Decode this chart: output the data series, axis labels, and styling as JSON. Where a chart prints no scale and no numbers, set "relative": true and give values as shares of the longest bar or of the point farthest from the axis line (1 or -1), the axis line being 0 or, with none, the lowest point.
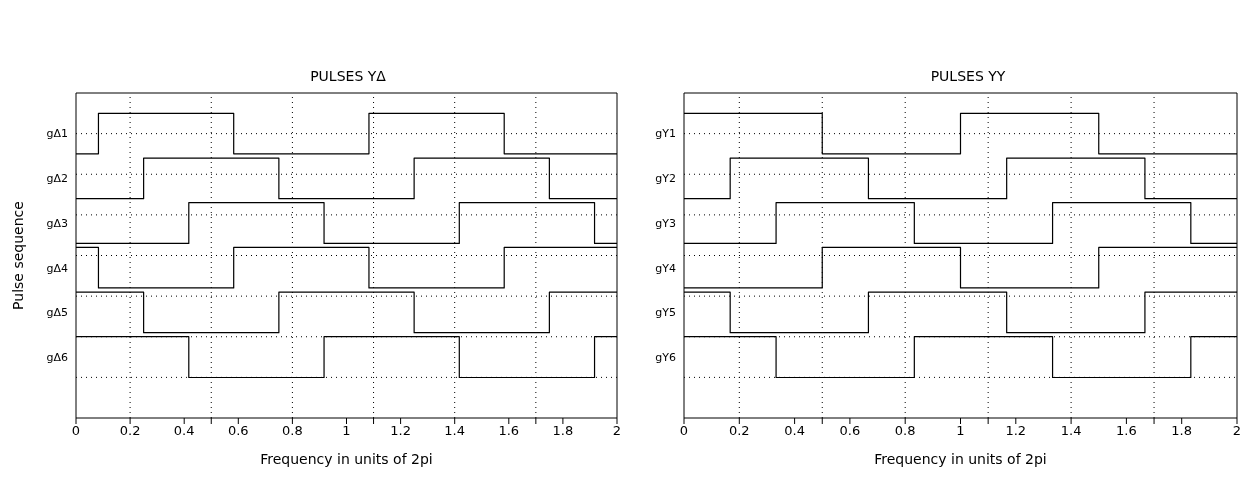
{
  "chart_data": [
    {
      "type": "step",
      "title": "PULSES YΔ",
      "xlabel": "Frequency in units of 2pi",
      "ylabel": "Pulse sequence",
      "xlim": [
        0,
        2
      ],
      "relative": true,
      "xticks": [
        0,
        0.2,
        0.4,
        0.6,
        0.8,
        1,
        1.2,
        1.4,
        1.6,
        1.8,
        2,
        {
          "value": 0.2,
          "label": null
        },
        {
          "value": 0.5,
          "label": null
        },
        {
          "value": 0.8,
          "label": null
        },
        {
          "value": 1.1,
          "label": null
        },
        {
          "value": 1.4,
          "label": null
        },
        {
          "value": 1.7,
          "label": null
        }
      ],
      "grid": true,
      "legend": false,
      "marker": "none",
      "line_style": "solid",
      "series": [
        {
          "name": "gΔ1",
          "color": "#000000",
          "x": [
            0,
            0.083,
            0.583,
            1.083,
            1.583,
            2
          ],
          "values": [
            0.867,
            1,
            0.867,
            1,
            0.867,
            0.867
          ]
        },
        {
          "name": "gΔ2",
          "color": "#000000",
          "x": [
            0,
            0.25,
            0.75,
            1.25,
            1.75,
            2
          ],
          "values": [
            0.72,
            0.853,
            0.72,
            0.853,
            0.72,
            0.72
          ]
        },
        {
          "name": "gΔ3",
          "color": "#000000",
          "x": [
            0,
            0.417,
            0.917,
            1.417,
            1.917,
            2
          ],
          "values": [
            0.573,
            0.707,
            0.573,
            0.707,
            0.573,
            0.573
          ]
        },
        {
          "name": "gΔ4",
          "color": "#000000",
          "x": [
            0,
            0.083,
            0.583,
            1.083,
            1.583,
            2
          ],
          "values": [
            0.56,
            0.427,
            0.56,
            0.427,
            0.56,
            0.56
          ]
        },
        {
          "name": "gΔ5",
          "color": "#000000",
          "x": [
            0,
            0.25,
            0.75,
            1.25,
            1.75,
            2
          ],
          "values": [
            0.413,
            0.28,
            0.413,
            0.28,
            0.413,
            0.413
          ]
        },
        {
          "name": "gΔ6",
          "color": "#000000",
          "x": [
            0,
            0.417,
            0.917,
            1.417,
            1.917,
            2
          ],
          "values": [
            0.267,
            0.133,
            0.267,
            0.133,
            0.267,
            0.267
          ]
        }
      ]
    },
    {
      "type": "step",
      "title": "PULSES YY",
      "xlabel": "Frequency in units of 2pi",
      "xlim": [
        0,
        2
      ],
      "relative": true,
      "xticks": [
        0,
        0.2,
        0.4,
        0.6,
        0.8,
        1,
        1.2,
        1.4,
        1.6,
        1.8,
        2,
        {
          "value": 0.2,
          "label": null
        },
        {
          "value": 0.5,
          "label": null
        },
        {
          "value": 0.8,
          "label": null
        },
        {
          "value": 1.1,
          "label": null
        },
        {
          "value": 1.4,
          "label": null
        },
        {
          "value": 1.7,
          "label": null
        }
      ],
      "grid": true,
      "legend": false,
      "marker": "none",
      "line_style": "solid",
      "series": [
        {
          "name": "gY1",
          "color": "#000000",
          "x": [
            0,
            0.5,
            1,
            1.5,
            2
          ],
          "values": [
            1,
            0.867,
            1,
            0.867,
            0.867
          ]
        },
        {
          "name": "gY2",
          "color": "#000000",
          "x": [
            0,
            0.167,
            0.667,
            1.167,
            1.667,
            2
          ],
          "values": [
            0.72,
            0.853,
            0.72,
            0.853,
            0.72,
            0.72
          ]
        },
        {
          "name": "gY3",
          "color": "#000000",
          "x": [
            0,
            0.333,
            0.833,
            1.333,
            1.833,
            2
          ],
          "values": [
            0.573,
            0.707,
            0.573,
            0.707,
            0.573,
            0.573
          ]
        },
        {
          "name": "gY4",
          "color": "#000000",
          "x": [
            0,
            0.5,
            1,
            1.5,
            2
          ],
          "values": [
            0.427,
            0.56,
            0.427,
            0.56,
            0.56
          ]
        },
        {
          "name": "gY5",
          "color": "#000000",
          "x": [
            0,
            0.167,
            0.667,
            1.167,
            1.667,
            2
          ],
          "values": [
            0.413,
            0.28,
            0.413,
            0.28,
            0.413,
            0.413
          ]
        },
        {
          "name": "gY6",
          "color": "#000000",
          "x": [
            0,
            0.333,
            0.833,
            1.333,
            1.833,
            2
          ],
          "values": [
            0.267,
            0.133,
            0.267,
            0.133,
            0.267,
            0.267
          ]
        }
      ]
    }
  ]
}
